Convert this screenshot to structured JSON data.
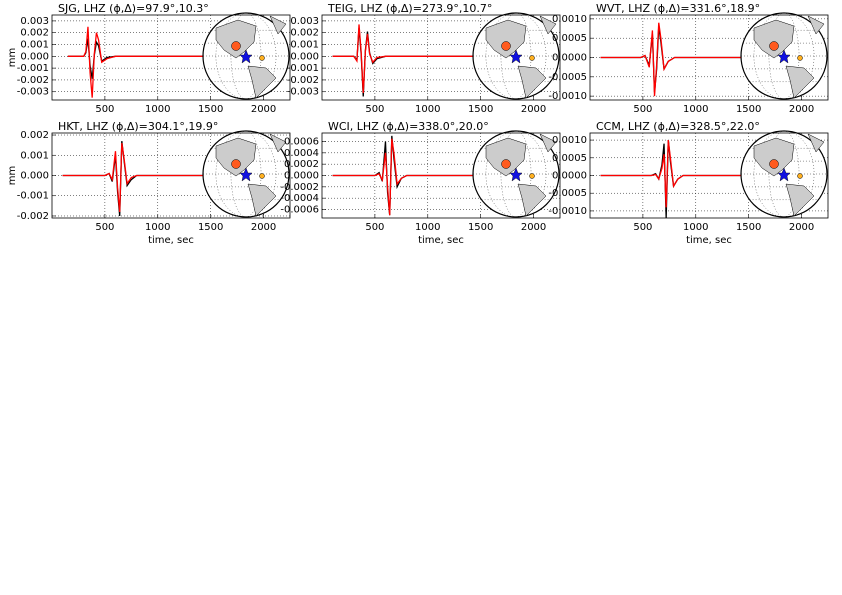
{
  "chart_data": [
    {
      "type": "line",
      "title": "SJG, LHZ (ϕ,Δ)=97.9°,10.3°",
      "ylabel": "mm",
      "x": [
        150,
        250,
        300,
        320,
        340,
        360,
        380,
        400,
        420,
        440,
        470,
        520,
        600,
        800,
        1200,
        1600,
        2000
      ],
      "series": [
        {
          "color": "#000000",
          "values": [
            0,
            0,
            0,
            0.0003,
            0.0015,
            -0.0008,
            -0.0019,
            0.0001,
            0.0012,
            0.0009,
            -0.0004,
            -0.0001,
            0,
            0,
            0,
            0,
            0
          ]
        },
        {
          "color": "#ff0000",
          "values": [
            0,
            0,
            0,
            0.0004,
            0.0025,
            -0.0014,
            -0.0035,
            0.0002,
            0.002,
            0.0014,
            -0.0005,
            -0.0002,
            0,
            0,
            0,
            0,
            0
          ]
        }
      ],
      "xlim": [
        0,
        2250
      ],
      "xticks": [
        500,
        1000,
        1500,
        2000
      ],
      "ylim": [
        -0.0037,
        0.0035
      ],
      "yticks": [
        0.003,
        0.002,
        0.001,
        {
          "value": 0,
          "label": "0.000"
        },
        -0.001,
        -0.002,
        -0.003
      ],
      "grid": true
    },
    {
      "type": "line",
      "title": "TEIG, LHZ (ϕ,Δ)=273.9°,10.7°",
      "x": [
        100,
        250,
        300,
        330,
        350,
        370,
        390,
        410,
        430,
        450,
        480,
        520,
        600,
        800,
        1200,
        1600,
        2000
      ],
      "series": [
        {
          "color": "#000000",
          "values": [
            0,
            0,
            0,
            -0.0003,
            0.0024,
            0.0002,
            -0.0034,
            0.0005,
            0.0021,
            0.0003,
            -0.0006,
            -0.0002,
            0,
            0,
            0,
            0,
            0
          ]
        },
        {
          "color": "#ff0000",
          "values": [
            0,
            0,
            0,
            -0.0004,
            0.0027,
            0.0004,
            -0.0031,
            0.0004,
            0.0019,
            0.0002,
            -0.0005,
            -0.0001,
            0,
            0,
            0,
            0,
            0
          ]
        }
      ],
      "xlim": [
        0,
        2250
      ],
      "xticks": [
        500,
        1000,
        1500,
        2000
      ],
      "ylim": [
        -0.0037,
        0.0035
      ],
      "yticks": [
        0.003,
        0.002,
        0.001,
        {
          "value": 0,
          "label": "0.000"
        },
        -0.001,
        -0.002,
        -0.003
      ],
      "grid": true
    },
    {
      "type": "line",
      "title": "WVT, LHZ (ϕ,Δ)=331.6°,18.9°",
      "x": [
        100,
        300,
        480,
        520,
        560,
        590,
        610,
        630,
        650,
        670,
        700,
        740,
        800,
        1000,
        1400,
        1800,
        2000
      ],
      "series": [
        {
          "color": "#000000",
          "values": [
            0,
            0,
            0,
            5e-05,
            -0.0002,
            0.0006,
            -0.0009,
            -0.0003,
            0.0008,
            0.0004,
            -0.0003,
            -0.0001,
            0,
            0,
            0,
            0,
            0
          ]
        },
        {
          "color": "#ff0000",
          "values": [
            0,
            0,
            0,
            5e-05,
            -0.00025,
            0.0007,
            -0.001,
            -0.0002,
            0.0009,
            0.0005,
            -0.0003,
            -0.0001,
            0,
            0,
            0,
            0,
            0
          ]
        }
      ],
      "xlim": [
        0,
        2250
      ],
      "xticks": [
        500,
        1000,
        1500,
        2000
      ],
      "ylim": [
        -0.0011,
        0.0011
      ],
      "yticks": [
        {
          "value": 0.001,
          "label": "0.0010"
        },
        0.0005,
        {
          "value": 0,
          "label": "0.0000"
        },
        -0.0005,
        {
          "value": -0.001,
          "label": "-0.0010"
        }
      ],
      "grid": true
    },
    {
      "type": "line",
      "title": "HKT, LHZ (ϕ,Δ)=304.1°,19.9°",
      "ylabel": "mm",
      "xlabel": "time, sec",
      "x": [
        100,
        300,
        500,
        540,
        570,
        600,
        620,
        640,
        660,
        680,
        710,
        750,
        800,
        1000,
        1400,
        1800,
        2000
      ],
      "series": [
        {
          "color": "#000000",
          "values": [
            0,
            0,
            0,
            0.0001,
            -0.0003,
            0.001,
            -0.0008,
            -0.002,
            0.0017,
            0.0008,
            -0.0005,
            -0.0002,
            0,
            0,
            0,
            0,
            0
          ]
        },
        {
          "color": "#ff0000",
          "values": [
            0,
            0,
            0,
            0.0001,
            -0.0002,
            0.0012,
            -0.0006,
            -0.0018,
            0.0016,
            0.0009,
            -0.0004,
            -0.0001,
            0,
            0,
            0,
            0,
            0
          ]
        }
      ],
      "xlim": [
        0,
        2250
      ],
      "xticks": [
        500,
        1000,
        1500,
        2000
      ],
      "ylim": [
        -0.0021,
        0.0021
      ],
      "yticks": [
        0.002,
        0.001,
        {
          "value": 0,
          "label": "0.000"
        },
        -0.001,
        -0.002
      ],
      "grid": true
    },
    {
      "type": "line",
      "title": "WCI, LHZ (ϕ,Δ)=338.0°,20.0°",
      "xlabel": "time, sec",
      "x": [
        100,
        300,
        500,
        540,
        570,
        600,
        620,
        640,
        660,
        680,
        710,
        750,
        800,
        1000,
        1400,
        1800,
        2000
      ],
      "series": [
        {
          "color": "#000000",
          "values": [
            0,
            0,
            0,
            5e-05,
            -0.0001,
            0.0006,
            -0.0003,
            -0.0007,
            0.0007,
            0.0003,
            -0.0002,
            -5e-05,
            0,
            0,
            0,
            0,
            0
          ]
        },
        {
          "color": "#ff0000",
          "values": [
            0,
            0,
            0,
            3e-05,
            -8e-05,
            0.0004,
            -0.0002,
            -0.0007,
            0.00065,
            0.0004,
            -0.00015,
            -5e-05,
            0,
            0,
            0,
            0,
            0
          ]
        }
      ],
      "xlim": [
        0,
        2250
      ],
      "xticks": [
        500,
        1000,
        1500,
        2000
      ],
      "ylim": [
        -0.00075,
        0.00075
      ],
      "yticks": [
        0.0006,
        0.0004,
        0.0002,
        {
          "value": 0,
          "label": "0.0000"
        },
        -0.0002,
        -0.0004,
        -0.0006
      ],
      "grid": true
    },
    {
      "type": "line",
      "title": "CCM, LHZ (ϕ,Δ)=328.5°,22.0°",
      "xlabel": "time, sec",
      "x": [
        100,
        300,
        580,
        620,
        650,
        680,
        700,
        720,
        740,
        760,
        790,
        830,
        880,
        1000,
        1400,
        1800,
        2000
      ],
      "series": [
        {
          "color": "#000000",
          "values": [
            0,
            0,
            0,
            5e-05,
            -0.0001,
            0.0003,
            0.0009,
            -0.0012,
            0.001,
            0.0004,
            -0.0003,
            -0.0001,
            0,
            0,
            0,
            0,
            0
          ]
        },
        {
          "color": "#ff0000",
          "values": [
            0,
            0,
            0,
            3e-05,
            -0.0001,
            0.0002,
            0.0006,
            -0.0009,
            0.001,
            0.0005,
            -0.0003,
            -0.0001,
            0,
            0,
            0,
            0,
            0
          ]
        }
      ],
      "xlim": [
        0,
        2250
      ],
      "xticks": [
        500,
        1000,
        1500,
        2000
      ],
      "ylim": [
        -0.0012,
        0.0012
      ],
      "yticks": [
        {
          "value": 0.001,
          "label": "0.0010"
        },
        0.0005,
        {
          "value": 0,
          "label": "0.0000"
        },
        -0.0005,
        {
          "value": -0.001,
          "label": "-0.0010"
        }
      ],
      "grid": true
    }
  ]
}
